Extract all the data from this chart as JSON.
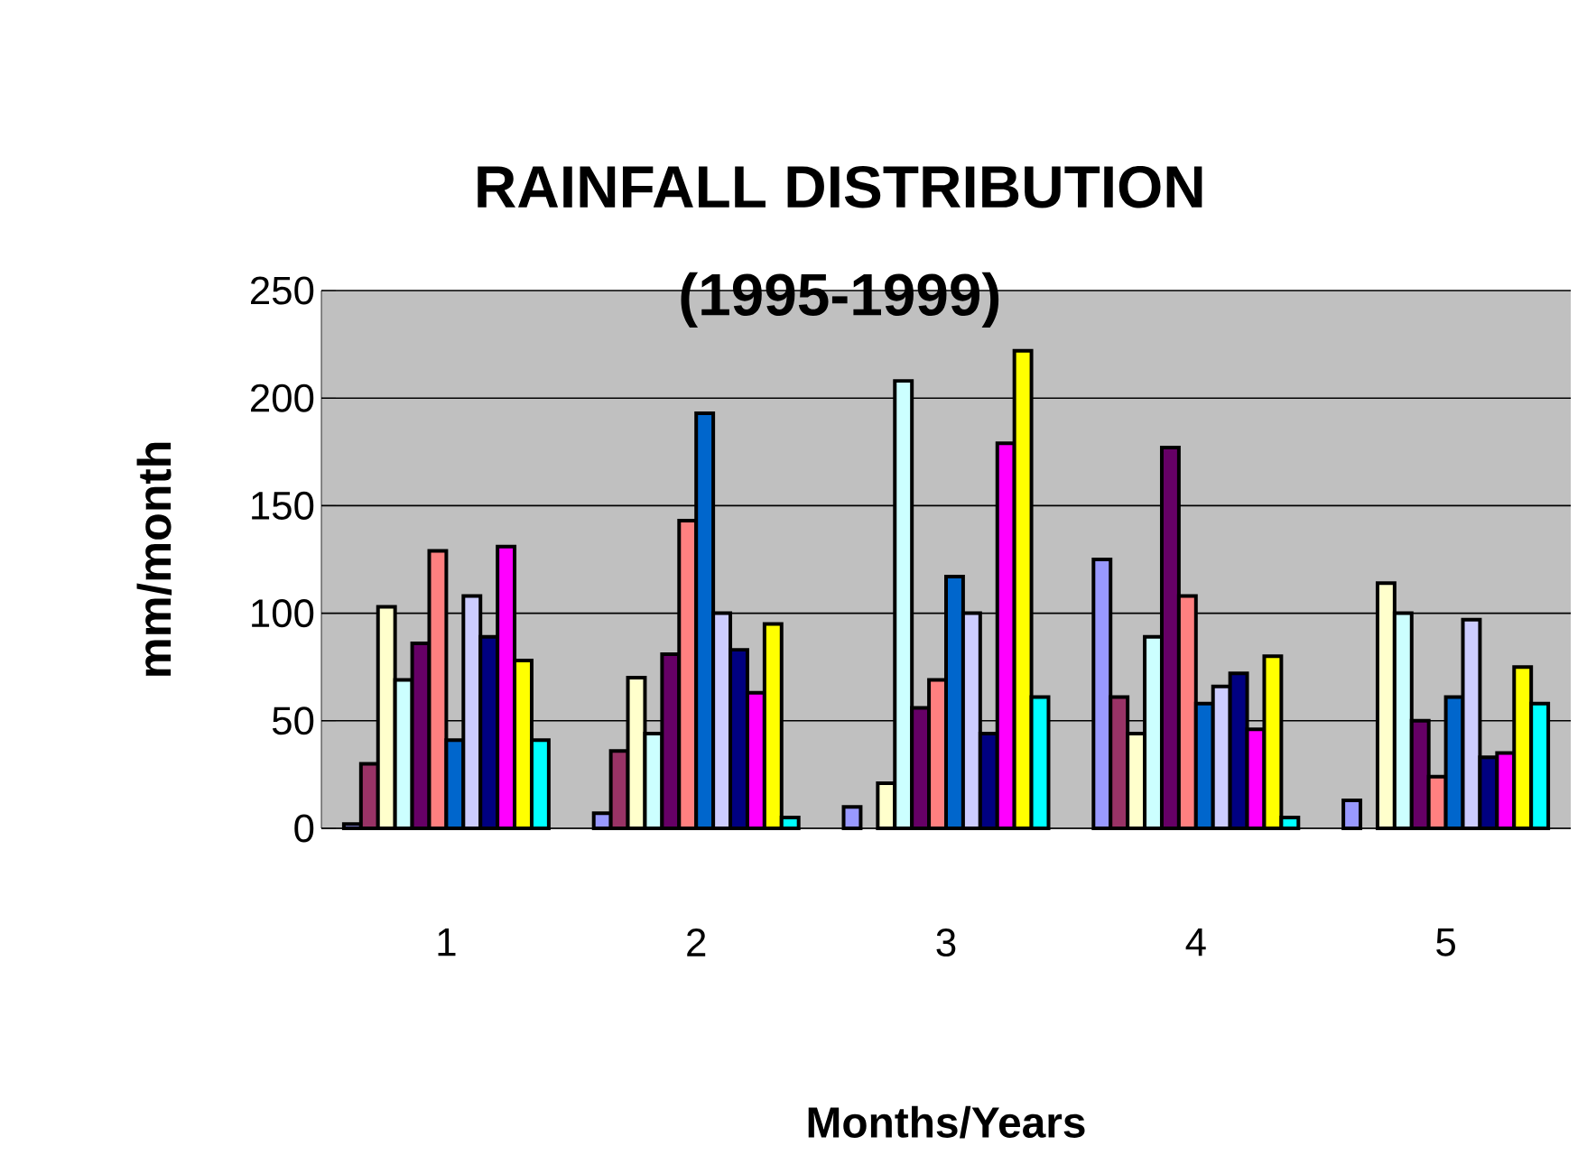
{
  "chart_data": {
    "type": "bar",
    "title": "RAINFALL DISTRIBUTION (1995-1999)",
    "xlabel": "Months/Years",
    "ylabel": "mm/month",
    "categories": [
      "1",
      "2",
      "3",
      "4",
      "5"
    ],
    "series": [
      {
        "color": "#9999ff",
        "values": [
          2,
          7,
          10,
          125,
          13
        ]
      },
      {
        "color": "#993366",
        "values": [
          30,
          36,
          null,
          61,
          null
        ]
      },
      {
        "color": "#ffffcc",
        "values": [
          103,
          70,
          21,
          44,
          114
        ]
      },
      {
        "color": "#ccffff",
        "values": [
          69,
          44,
          208,
          89,
          100
        ]
      },
      {
        "color": "#660066",
        "values": [
          86,
          81,
          56,
          177,
          50
        ]
      },
      {
        "color": "#ff8080",
        "values": [
          129,
          143,
          69,
          108,
          24
        ]
      },
      {
        "color": "#0066cc",
        "values": [
          41,
          193,
          117,
          58,
          61
        ]
      },
      {
        "color": "#ccccff",
        "values": [
          108,
          100,
          100,
          66,
          97
        ]
      },
      {
        "color": "#000080",
        "values": [
          89,
          83,
          44,
          72,
          33
        ]
      },
      {
        "color": "#ff00ff",
        "values": [
          131,
          63,
          179,
          46,
          35
        ]
      },
      {
        "color": "#ffff00",
        "values": [
          78,
          95,
          222,
          80,
          75
        ]
      },
      {
        "color": "#00ffff",
        "values": [
          41,
          5,
          61,
          5,
          58
        ]
      }
    ],
    "ylim": [
      0,
      250
    ],
    "yticks": [
      0,
      50,
      100,
      150,
      200,
      250
    ],
    "grid": "y"
  }
}
